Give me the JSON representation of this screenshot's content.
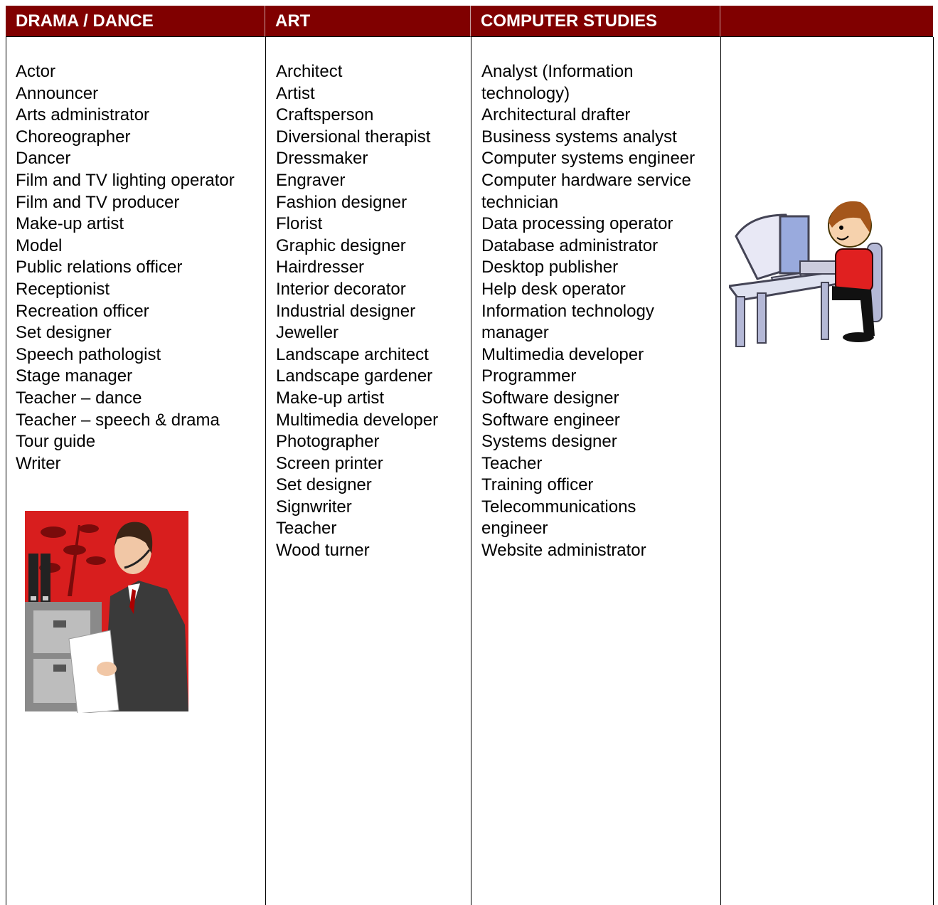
{
  "columns": [
    {
      "header": "DRAMA / DANCE",
      "items": [
        "Actor",
        "Announcer",
        "Arts administrator",
        "Choreographer",
        "Dancer",
        "Film and TV lighting operator",
        "Film and TV producer",
        "Make-up artist",
        "Model",
        "Public relations officer",
        "Receptionist",
        "Recreation officer",
        "Set designer",
        "Speech pathologist",
        "Stage manager",
        "Teacher – dance",
        "Teacher – speech & drama",
        "Tour guide",
        "Writer"
      ]
    },
    {
      "header": "ART",
      "items": [
        "Architect",
        "Artist",
        "Craftsperson",
        "Diversional therapist",
        "Dressmaker",
        "Engraver",
        "Fashion designer",
        "Florist",
        "Graphic designer",
        "Hairdresser",
        "Interior decorator",
        "Industrial designer",
        "Jeweller",
        "Landscape architect",
        "Landscape gardener",
        "Make-up artist",
        "Multimedia developer",
        "Photographer",
        "Screen printer",
        "Set designer",
        "Signwriter",
        "Teacher",
        "Wood turner"
      ]
    },
    {
      "header": "COMPUTER STUDIES",
      "items": [
        "Analyst (Information technology)",
        "Architectural drafter",
        "Business systems analyst",
        "Computer systems engineer",
        "Computer hardware service technician",
        "Data processing operator",
        "Database administrator",
        "Desktop publisher",
        "Help desk operator",
        "Information technology manager",
        "Multimedia developer",
        "Programmer",
        "Software designer",
        "Software engineer",
        "Systems designer",
        "Teacher",
        "Training officer",
        "Telecommunications engineer",
        "Website administrator"
      ]
    }
  ]
}
